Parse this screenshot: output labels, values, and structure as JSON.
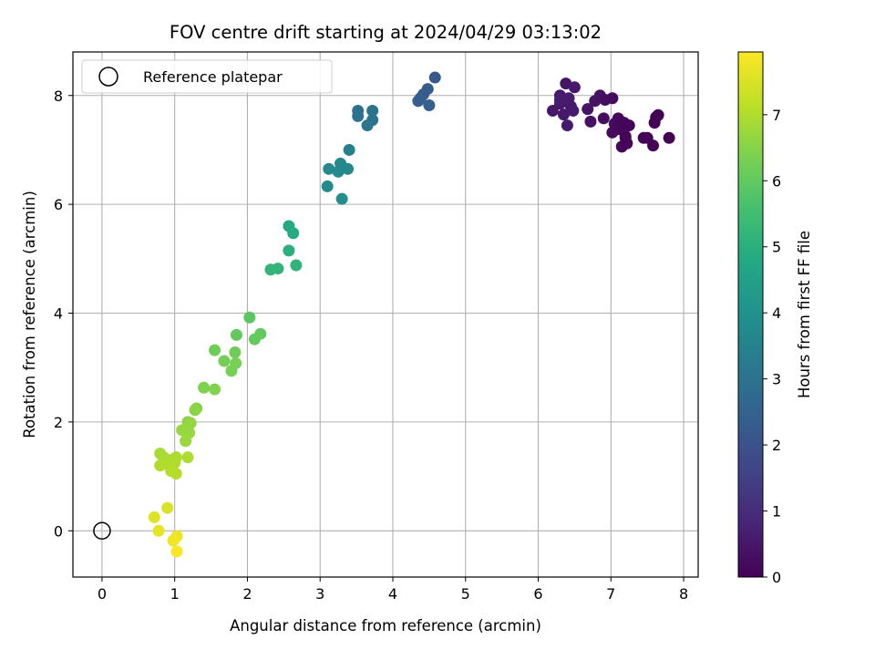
{
  "chart_data": {
    "type": "scatter",
    "title": "FOV centre drift starting at 2024/04/29 03:13:02",
    "xlabel": "Angular distance from reference (arcmin)",
    "ylabel": "Rotation from reference (arcmin)",
    "xlim": [
      -0.4,
      8.2
    ],
    "ylim": [
      -0.85,
      8.8
    ],
    "xticks": [
      0,
      1,
      2,
      3,
      4,
      5,
      6,
      7,
      8
    ],
    "yticks": [
      0,
      2,
      4,
      6,
      8
    ],
    "grid": true,
    "legend": {
      "entries": [
        "Reference platepar"
      ],
      "placement": "top-left"
    },
    "reference_point": {
      "x": 0,
      "y": 0,
      "marker": "open-circle"
    },
    "colorbar": {
      "label": "Hours from first FF file",
      "colormap": "viridis",
      "range": [
        0,
        7.95
      ],
      "ticks": [
        0,
        1,
        2,
        3,
        4,
        5,
        6,
        7
      ]
    },
    "points": [
      {
        "x": 6.38,
        "y": 8.22,
        "h": 0.45
      },
      {
        "x": 6.5,
        "y": 8.15,
        "h": 0.5
      },
      {
        "x": 6.3,
        "y": 8.0,
        "h": 0.55
      },
      {
        "x": 6.42,
        "y": 7.95,
        "h": 0.6
      },
      {
        "x": 6.3,
        "y": 7.85,
        "h": 0.5
      },
      {
        "x": 6.45,
        "y": 7.8,
        "h": 0.55
      },
      {
        "x": 6.48,
        "y": 7.72,
        "h": 0.6
      },
      {
        "x": 6.2,
        "y": 7.72,
        "h": 0.5
      },
      {
        "x": 6.35,
        "y": 7.65,
        "h": 0.55
      },
      {
        "x": 6.3,
        "y": 7.92,
        "h": 0.6
      },
      {
        "x": 6.4,
        "y": 7.45,
        "h": 0.55
      },
      {
        "x": 6.68,
        "y": 7.75,
        "h": 0.4
      },
      {
        "x": 6.72,
        "y": 7.52,
        "h": 0.35
      },
      {
        "x": 6.78,
        "y": 7.9,
        "h": 0.4
      },
      {
        "x": 6.85,
        "y": 8.0,
        "h": 0.35
      },
      {
        "x": 6.9,
        "y": 7.58,
        "h": 0.3
      },
      {
        "x": 6.92,
        "y": 7.92,
        "h": 0.3
      },
      {
        "x": 7.02,
        "y": 7.95,
        "h": 0.25
      },
      {
        "x": 7.05,
        "y": 7.48,
        "h": 0.2
      },
      {
        "x": 7.02,
        "y": 7.32,
        "h": 0.2
      },
      {
        "x": 7.1,
        "y": 7.58,
        "h": 0.15
      },
      {
        "x": 7.12,
        "y": 7.38,
        "h": 0.15
      },
      {
        "x": 7.18,
        "y": 7.5,
        "h": 0.1
      },
      {
        "x": 7.2,
        "y": 7.25,
        "h": 0.1
      },
      {
        "x": 7.15,
        "y": 7.06,
        "h": 0.1
      },
      {
        "x": 7.22,
        "y": 7.12,
        "h": 0.1
      },
      {
        "x": 7.25,
        "y": 7.45,
        "h": 0.1
      },
      {
        "x": 7.2,
        "y": 7.22,
        "h": 0.12
      },
      {
        "x": 7.45,
        "y": 7.22,
        "h": 0.05
      },
      {
        "x": 7.5,
        "y": 7.22,
        "h": 0.05
      },
      {
        "x": 7.58,
        "y": 7.08,
        "h": 0.05
      },
      {
        "x": 7.6,
        "y": 7.5,
        "h": 0.05
      },
      {
        "x": 7.62,
        "y": 7.6,
        "h": 0.03
      },
      {
        "x": 7.65,
        "y": 7.64,
        "h": 0.02
      },
      {
        "x": 7.8,
        "y": 7.22,
        "h": 0.0
      },
      {
        "x": 4.58,
        "y": 8.33,
        "h": 2.2
      },
      {
        "x": 4.48,
        "y": 8.12,
        "h": 2.3
      },
      {
        "x": 4.42,
        "y": 8.02,
        "h": 2.3
      },
      {
        "x": 4.38,
        "y": 7.95,
        "h": 2.35
      },
      {
        "x": 4.35,
        "y": 7.9,
        "h": 2.4
      },
      {
        "x": 4.5,
        "y": 7.82,
        "h": 2.4
      },
      {
        "x": 3.52,
        "y": 7.72,
        "h": 3.0
      },
      {
        "x": 3.52,
        "y": 7.62,
        "h": 3.0
      },
      {
        "x": 3.72,
        "y": 7.72,
        "h": 3.05
      },
      {
        "x": 3.72,
        "y": 7.55,
        "h": 3.05
      },
      {
        "x": 3.65,
        "y": 7.45,
        "h": 3.1
      },
      {
        "x": 3.4,
        "y": 7.0,
        "h": 3.4
      },
      {
        "x": 3.12,
        "y": 6.65,
        "h": 3.75
      },
      {
        "x": 3.28,
        "y": 6.75,
        "h": 3.7
      },
      {
        "x": 3.25,
        "y": 6.6,
        "h": 3.75
      },
      {
        "x": 3.38,
        "y": 6.65,
        "h": 3.7
      },
      {
        "x": 3.1,
        "y": 6.33,
        "h": 3.8
      },
      {
        "x": 3.3,
        "y": 6.1,
        "h": 3.9
      },
      {
        "x": 2.57,
        "y": 5.6,
        "h": 4.8
      },
      {
        "x": 2.63,
        "y": 5.47,
        "h": 4.85
      },
      {
        "x": 2.57,
        "y": 5.15,
        "h": 5.0
      },
      {
        "x": 2.32,
        "y": 4.8,
        "h": 5.2
      },
      {
        "x": 2.42,
        "y": 4.82,
        "h": 5.2
      },
      {
        "x": 2.67,
        "y": 4.88,
        "h": 5.15
      },
      {
        "x": 2.03,
        "y": 3.92,
        "h": 5.9
      },
      {
        "x": 1.85,
        "y": 3.6,
        "h": 6.0
      },
      {
        "x": 2.18,
        "y": 3.62,
        "h": 6.0
      },
      {
        "x": 2.1,
        "y": 3.52,
        "h": 6.05
      },
      {
        "x": 1.55,
        "y": 3.32,
        "h": 6.2
      },
      {
        "x": 1.83,
        "y": 3.28,
        "h": 6.2
      },
      {
        "x": 1.68,
        "y": 3.12,
        "h": 6.25
      },
      {
        "x": 1.84,
        "y": 3.08,
        "h": 6.3
      },
      {
        "x": 1.78,
        "y": 2.94,
        "h": 6.3
      },
      {
        "x": 1.4,
        "y": 2.63,
        "h": 6.4
      },
      {
        "x": 1.55,
        "y": 2.6,
        "h": 6.45
      },
      {
        "x": 1.3,
        "y": 2.25,
        "h": 6.5
      },
      {
        "x": 1.28,
        "y": 2.22,
        "h": 6.55
      },
      {
        "x": 1.18,
        "y": 2.0,
        "h": 6.6
      },
      {
        "x": 1.22,
        "y": 1.98,
        "h": 6.65
      },
      {
        "x": 1.1,
        "y": 1.85,
        "h": 6.7
      },
      {
        "x": 1.2,
        "y": 1.8,
        "h": 6.7
      },
      {
        "x": 1.15,
        "y": 1.65,
        "h": 6.75
      },
      {
        "x": 0.8,
        "y": 1.42,
        "h": 6.9
      },
      {
        "x": 0.85,
        "y": 1.35,
        "h": 6.9
      },
      {
        "x": 0.95,
        "y": 1.3,
        "h": 6.95
      },
      {
        "x": 1.02,
        "y": 1.35,
        "h": 6.95
      },
      {
        "x": 1.18,
        "y": 1.35,
        "h": 6.95
      },
      {
        "x": 0.8,
        "y": 1.2,
        "h": 7.0
      },
      {
        "x": 0.9,
        "y": 1.22,
        "h": 7.0
      },
      {
        "x": 1.0,
        "y": 1.25,
        "h": 7.0
      },
      {
        "x": 0.95,
        "y": 1.1,
        "h": 7.05
      },
      {
        "x": 1.02,
        "y": 1.05,
        "h": 7.05
      },
      {
        "x": 0.72,
        "y": 0.25,
        "h": 7.55
      },
      {
        "x": 0.9,
        "y": 0.42,
        "h": 7.5
      },
      {
        "x": 0.78,
        "y": 0.0,
        "h": 7.65
      },
      {
        "x": 1.03,
        "y": -0.1,
        "h": 7.75
      },
      {
        "x": 0.98,
        "y": -0.18,
        "h": 7.8
      },
      {
        "x": 1.03,
        "y": -0.38,
        "h": 7.9
      }
    ]
  }
}
